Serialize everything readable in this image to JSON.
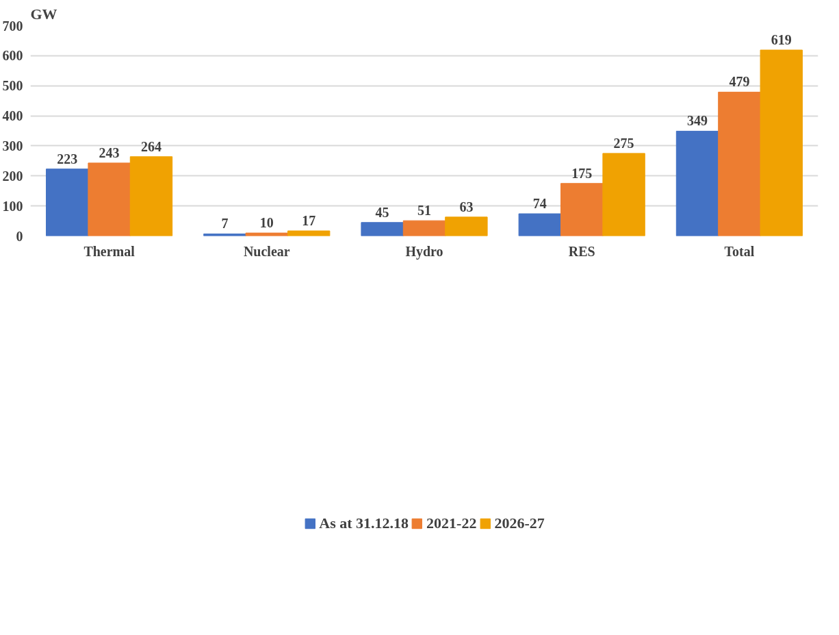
{
  "chart_data": {
    "type": "bar",
    "ylabel": "GW",
    "categories": [
      "Thermal",
      "Nuclear",
      "Hydro",
      "RES",
      "Total"
    ],
    "series": [
      {
        "name": "As at 31.12.18",
        "color": "#4472c4",
        "values": [
          223,
          7,
          45,
          74,
          349
        ]
      },
      {
        "name": "2021-22",
        "color": "#ed7d31",
        "values": [
          243,
          10,
          51,
          175,
          479
        ]
      },
      {
        "name": "2026-27",
        "color": "#f0a202",
        "values": [
          264,
          17,
          63,
          275,
          619
        ]
      }
    ],
    "ylim": [
      0,
      700
    ],
    "yticks": [
      0,
      100,
      200,
      300,
      400,
      500,
      600,
      700
    ],
    "grid": "y",
    "legend": "bottom",
    "data_labels": true
  }
}
